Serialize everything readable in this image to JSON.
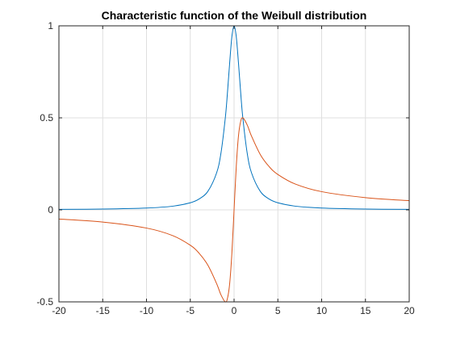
{
  "chart_data": {
    "type": "line",
    "title": "Characteristic function of the Weibull distribution",
    "xlabel": "",
    "ylabel": "",
    "xlim": [
      -20,
      20
    ],
    "ylim": [
      -0.5,
      1
    ],
    "xticks": [
      -20,
      -15,
      -10,
      -5,
      0,
      5,
      10,
      15,
      20
    ],
    "xtick_labels": [
      "-20",
      "-15",
      "-10",
      "-5",
      "0",
      "5",
      "10",
      "15",
      "20"
    ],
    "yticks": [
      -0.5,
      0,
      0.5,
      1
    ],
    "ytick_labels": [
      "-0.5",
      "0",
      "0.5",
      "1"
    ],
    "grid": true,
    "legend": "none",
    "series": [
      {
        "color": "#0072BD",
        "x": [
          -20,
          -15,
          -10,
          -7,
          -5,
          -4,
          -3,
          -2,
          -1.5,
          -1,
          -0.75,
          -0.5,
          -0.25,
          0,
          0.25,
          0.5,
          0.75,
          1,
          1.5,
          2,
          3,
          4,
          5,
          7,
          10,
          15,
          20
        ],
        "y": [
          0.0025,
          0.0044,
          0.0099,
          0.02,
          0.0385,
          0.0588,
          0.1,
          0.2,
          0.3077,
          0.5,
          0.64,
          0.8,
          0.9412,
          1.0,
          0.9412,
          0.8,
          0.64,
          0.5,
          0.3077,
          0.2,
          0.1,
          0.0588,
          0.0385,
          0.02,
          0.0099,
          0.0044,
          0.0025
        ]
      },
      {
        "color": "#D95319",
        "x": [
          -20,
          -15,
          -10,
          -7,
          -5,
          -4,
          -3,
          -2,
          -1.5,
          -1,
          -0.75,
          -0.5,
          -0.25,
          0,
          0.25,
          0.5,
          0.75,
          1,
          1.5,
          2,
          3,
          4,
          5,
          7,
          10,
          15,
          20
        ],
        "y": [
          -0.0499,
          -0.0664,
          -0.099,
          -0.14,
          -0.1923,
          -0.2353,
          -0.3,
          -0.4,
          -0.4615,
          -0.5,
          -0.48,
          -0.4,
          -0.2353,
          0.0,
          0.2353,
          0.4,
          0.48,
          0.5,
          0.4615,
          0.4,
          0.3,
          0.2353,
          0.1923,
          0.14,
          0.099,
          0.0664,
          0.0499
        ]
      }
    ]
  }
}
